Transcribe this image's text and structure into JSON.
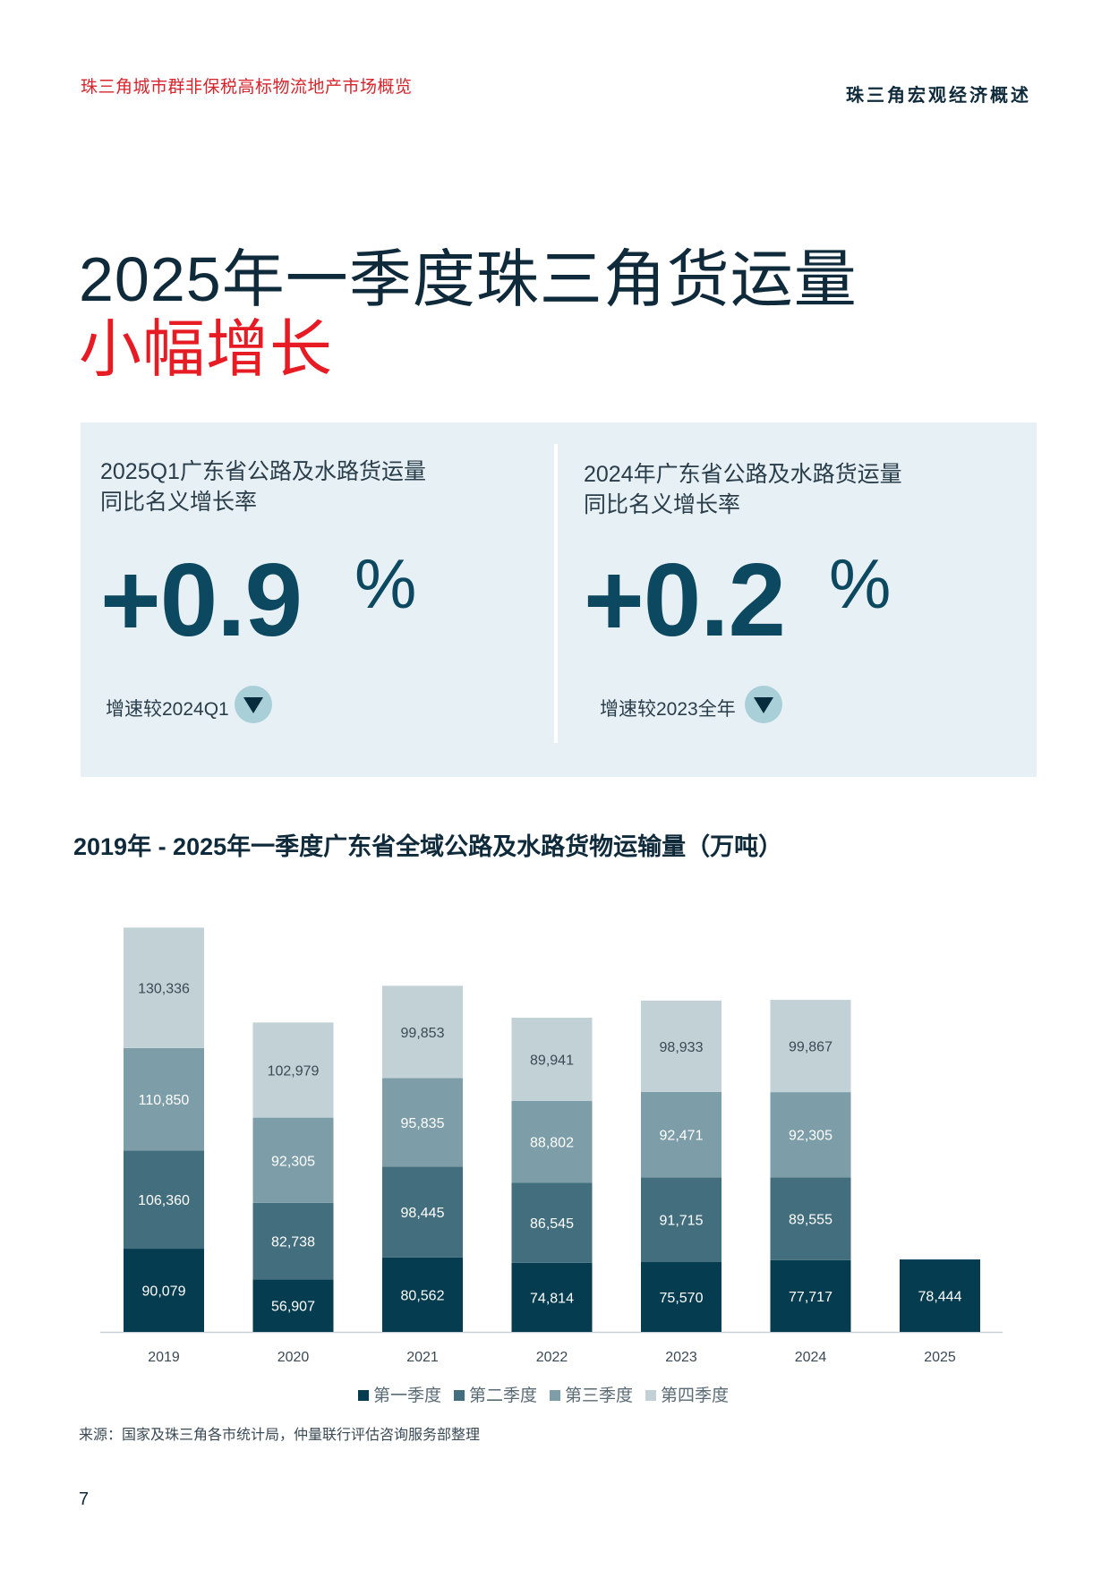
{
  "header": {
    "left": "珠三角城市群非保税高标物流地产市场概览",
    "right": "珠三角宏观经济概述"
  },
  "title": {
    "line1": "2025年一季度珠三角货运量",
    "line2": "小幅增长"
  },
  "stats": [
    {
      "title_line1": "2025Q1广东省公路及水路货运量",
      "title_line2": "同比名义增长率",
      "value": "+0.9",
      "unit": "%",
      "compare_label": "增速较2024Q1",
      "trend_icon": "triangle-down-icon"
    },
    {
      "title_line1": "2024年广东省公路及水路货运量",
      "title_line2": "同比名义增长率",
      "value": "+0.2",
      "unit": "%",
      "compare_label": "增速较2023全年",
      "trend_icon": "triangle-down-icon"
    }
  ],
  "chart_data": {
    "type": "bar",
    "stacked": true,
    "title": "2019年 - 2025年一季度广东省全域公路及水路货物运输量（万吨）",
    "categories": [
      "2019",
      "2020",
      "2021",
      "2022",
      "2023",
      "2024",
      "2025"
    ],
    "series": [
      {
        "name": "第一季度",
        "color": "#063c4f",
        "values": [
          90079,
          56907,
          80562,
          74814,
          75570,
          77717,
          78444
        ]
      },
      {
        "name": "第二季度",
        "color": "#436e7d",
        "values": [
          106360,
          82738,
          98445,
          86545,
          91715,
          89555,
          null
        ]
      },
      {
        "name": "第三季度",
        "color": "#7d9ea8",
        "values": [
          110850,
          92305,
          95835,
          88802,
          92471,
          92305,
          null
        ]
      },
      {
        "name": "第四季度",
        "color": "#c2d1d6",
        "values": [
          130336,
          102979,
          99853,
          89941,
          98933,
          99867,
          null
        ]
      }
    ],
    "data_labels": [
      [
        "90,079",
        "56,907",
        "80,562",
        "74,814",
        "75,570",
        "77,717",
        "78,444"
      ],
      [
        "106,360",
        "82,738",
        "98,445",
        "86,545",
        "91,715",
        "89,555",
        ""
      ],
      [
        "110,850",
        "92,305",
        "95,835",
        "88,802",
        "92,471",
        "92,305",
        ""
      ],
      [
        "130,336",
        "102,979",
        "99,853",
        "89,941",
        "98,933",
        "99,867",
        ""
      ]
    ],
    "ylim": [
      0,
      450000
    ],
    "legend_position": "bottom",
    "grid": false
  },
  "source": "来源：国家及珠三角各市统计局，仲量联行评估咨询服务部整理",
  "page_number": "7"
}
